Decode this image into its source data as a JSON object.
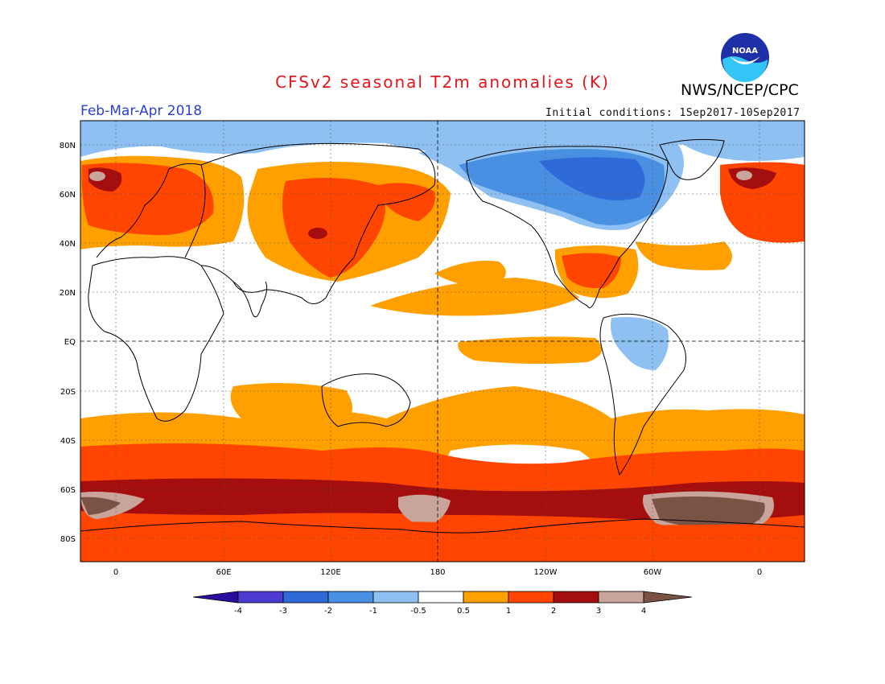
{
  "title": "CFSv2 seasonal T2m anomalies (K)",
  "agency": "NWS/NCEP/CPC",
  "logo_text": "NOAA",
  "period": "Feb-Mar-Apr 2018",
  "initial_conditions": "Initial conditions: 1Sep2017-10Sep2017",
  "map": {
    "projection": "equirectangular, 20W to 20E (centered on 180)",
    "lat_labels": [
      "80N",
      "60N",
      "40N",
      "20N",
      "EQ",
      "20S",
      "40S",
      "60S",
      "80S"
    ],
    "lon_labels": [
      "0",
      "60E",
      "120E",
      "180",
      "120W",
      "60W",
      "0"
    ],
    "gridlines": "dotted at 20° latitude / 60° longitude",
    "dashed_lines": [
      "equator",
      "180 meridian"
    ]
  },
  "colorbar": {
    "labels": [
      "-4",
      "-3",
      "-2",
      "-1",
      "-0.5",
      "0.5",
      "1",
      "2",
      "3",
      "4"
    ],
    "colors": [
      "#2a0d9c",
      "#4d3bd0",
      "#2e6bd9",
      "#4a90e2",
      "#8ec0f2",
      "#ffffff",
      "#ffa000",
      "#ff4500",
      "#a50e0e",
      "#c8a49a",
      "#7a5345"
    ]
  }
}
